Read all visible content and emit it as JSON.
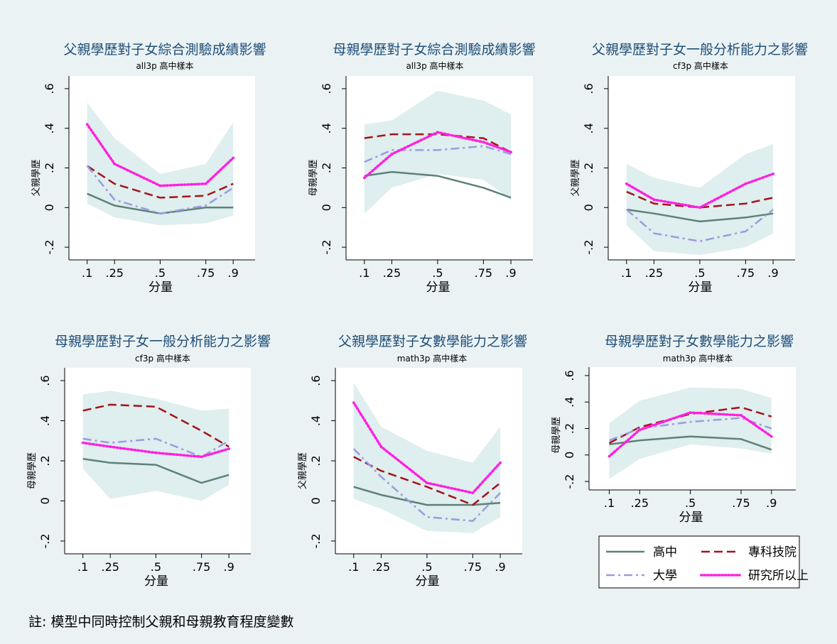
{
  "colors": {
    "background": "#eaf2f3",
    "plot_bg": "#ffffff",
    "band": "#dfeeee",
    "title": "#1f4e79"
  },
  "note": "註: 模型中同時控制父親和母親教育程度變數",
  "legend": {
    "items": [
      {
        "label": "高中",
        "color": "#5d8278",
        "dash": "solid"
      },
      {
        "label": "專科技院",
        "color": "#a3141c",
        "dash": "dash"
      },
      {
        "label": "大學",
        "color": "#9b9be0",
        "dash": "dashdot"
      },
      {
        "label": "研究所以上",
        "color": "#ff21e0",
        "dash": "dotted"
      }
    ]
  },
  "chart_data": [
    {
      "type": "line",
      "title": "父親學歷對子女綜合測驗成績影響",
      "subtitle": "all3p 高中樣本",
      "xlabel": "分量",
      "ylabel": "父親學歷",
      "x": [
        0.1,
        0.25,
        0.5,
        0.75,
        0.9
      ],
      "x_tick_labels": [
        ".1",
        ".25",
        ".5",
        ".75",
        ".9"
      ],
      "ylim": [
        -0.2,
        0.6
      ],
      "y_ticks": [
        -0.2,
        0,
        0.2,
        0.4,
        0.6
      ],
      "y_tick_labels": [
        "-.2",
        "0",
        ".2",
        ".4",
        ".6"
      ],
      "band": {
        "upper": [
          0.53,
          0.35,
          0.17,
          0.22,
          0.43
        ],
        "lower": [
          0.02,
          -0.05,
          -0.09,
          -0.08,
          -0.04
        ]
      },
      "series": [
        {
          "name": "高中",
          "values": [
            0.07,
            0.01,
            -0.03,
            0.0,
            0.0
          ]
        },
        {
          "name": "專科技院",
          "values": [
            0.21,
            0.12,
            0.05,
            0.06,
            0.12
          ]
        },
        {
          "name": "大學",
          "values": [
            0.21,
            0.04,
            -0.03,
            0.01,
            0.1
          ]
        },
        {
          "name": "研究所以上",
          "values": [
            0.42,
            0.22,
            0.11,
            0.12,
            0.25
          ]
        }
      ]
    },
    {
      "type": "line",
      "title": "母親學歷對子女綜合測驗成績影響",
      "subtitle": "all3p 高中樣本",
      "xlabel": "分量",
      "ylabel": "母親學歷",
      "x": [
        0.1,
        0.25,
        0.5,
        0.75,
        0.9
      ],
      "x_tick_labels": [
        ".1",
        ".25",
        ".5",
        ".75",
        ".9"
      ],
      "ylim": [
        -0.2,
        0.6
      ],
      "y_ticks": [
        -0.2,
        0,
        0.2,
        0.4,
        0.6
      ],
      "y_tick_labels": [
        "-.2",
        "0",
        ".2",
        ".4",
        ".6"
      ],
      "band": {
        "upper": [
          0.42,
          0.44,
          0.59,
          0.54,
          0.47
        ],
        "lower": [
          -0.03,
          0.1,
          0.17,
          0.14,
          0.04
        ]
      },
      "series": [
        {
          "name": "高中",
          "values": [
            0.16,
            0.18,
            0.16,
            0.1,
            0.05
          ]
        },
        {
          "name": "專科技院",
          "values": [
            0.35,
            0.37,
            0.37,
            0.35,
            0.28
          ]
        },
        {
          "name": "大學",
          "values": [
            0.23,
            0.29,
            0.29,
            0.31,
            0.27
          ]
        },
        {
          "name": "研究所以上",
          "values": [
            0.15,
            0.27,
            0.38,
            0.33,
            0.28
          ]
        }
      ]
    },
    {
      "type": "line",
      "title": "父親學歷對子女一般分析能力之影響",
      "subtitle": "cf3p 高中樣本",
      "xlabel": "分量",
      "ylabel": "父親學歷",
      "x": [
        0.1,
        0.25,
        0.5,
        0.75,
        0.9
      ],
      "x_tick_labels": [
        ".1",
        ".25",
        ".5",
        ".75",
        ".9"
      ],
      "ylim": [
        -0.2,
        0.6
      ],
      "y_ticks": [
        -0.2,
        0,
        0.2,
        0.4,
        0.6
      ],
      "y_tick_labels": [
        "-.2",
        "0",
        ".2",
        ".4",
        ".6"
      ],
      "band": {
        "upper": [
          0.22,
          0.15,
          0.1,
          0.27,
          0.32
        ],
        "lower": [
          -0.09,
          -0.22,
          -0.24,
          -0.2,
          -0.13
        ]
      },
      "series": [
        {
          "name": "高中",
          "values": [
            -0.01,
            -0.03,
            -0.07,
            -0.05,
            -0.03
          ]
        },
        {
          "name": "專科技院",
          "values": [
            0.08,
            0.02,
            0.0,
            0.02,
            0.05
          ]
        },
        {
          "name": "大學",
          "values": [
            -0.01,
            -0.13,
            -0.17,
            -0.12,
            -0.01
          ]
        },
        {
          "name": "研究所以上",
          "values": [
            0.12,
            0.04,
            0.0,
            0.12,
            0.17
          ]
        }
      ]
    },
    {
      "type": "line",
      "title": "母親學歷對子女一般分析能力之影響",
      "subtitle": "cf3p 高中樣本",
      "xlabel": "分量",
      "ylabel": "母親學歷",
      "x": [
        0.1,
        0.25,
        0.5,
        0.75,
        0.9
      ],
      "x_tick_labels": [
        ".1",
        ".25",
        ".5",
        ".75",
        ".9"
      ],
      "ylim": [
        -0.2,
        0.6
      ],
      "y_ticks": [
        -0.2,
        0,
        0.2,
        0.4,
        0.6
      ],
      "y_tick_labels": [
        "-.2",
        "0",
        ".2",
        ".4",
        ".6"
      ],
      "band": {
        "upper": [
          0.53,
          0.55,
          0.51,
          0.45,
          0.46
        ],
        "lower": [
          0.16,
          0.01,
          0.05,
          0.0,
          0.08
        ]
      },
      "series": [
        {
          "name": "高中",
          "values": [
            0.21,
            0.19,
            0.18,
            0.09,
            0.13
          ]
        },
        {
          "name": "專科技院",
          "values": [
            0.45,
            0.48,
            0.47,
            0.35,
            0.27
          ]
        },
        {
          "name": "大學",
          "values": [
            0.31,
            0.29,
            0.31,
            0.22,
            0.3
          ]
        },
        {
          "name": "研究所以上",
          "values": [
            0.29,
            0.27,
            0.24,
            0.22,
            0.26
          ]
        }
      ]
    },
    {
      "type": "line",
      "title": "父親學歷對子女數學能力之影響",
      "subtitle": "math3p 高中樣本",
      "xlabel": "分量",
      "ylabel": "父親學歷",
      "x": [
        0.1,
        0.25,
        0.5,
        0.75,
        0.9
      ],
      "x_tick_labels": [
        ".1",
        ".25",
        ".5",
        ".75",
        ".9"
      ],
      "ylim": [
        -0.2,
        0.6
      ],
      "y_ticks": [
        -0.2,
        0,
        0.2,
        0.4,
        0.6
      ],
      "y_tick_labels": [
        "-.2",
        "0",
        ".2",
        ".4",
        ".6"
      ],
      "band": {
        "upper": [
          0.59,
          0.37,
          0.25,
          0.19,
          0.37
        ],
        "lower": [
          0.01,
          -0.04,
          -0.15,
          -0.16,
          -0.08
        ]
      },
      "series": [
        {
          "name": "高中",
          "values": [
            0.07,
            0.03,
            -0.02,
            -0.02,
            -0.01
          ]
        },
        {
          "name": "專科技院",
          "values": [
            0.22,
            0.15,
            0.07,
            -0.02,
            0.09
          ]
        },
        {
          "name": "大學",
          "values": [
            0.26,
            0.12,
            -0.08,
            -0.1,
            0.04
          ]
        },
        {
          "name": "研究所以上",
          "values": [
            0.49,
            0.27,
            0.09,
            0.04,
            0.19
          ]
        }
      ]
    },
    {
      "type": "line",
      "title": "母親學歷對子女數學能力之影響",
      "subtitle": "math3p 高中樣本",
      "xlabel": "分量",
      "ylabel": "母親學歷",
      "x": [
        0.1,
        0.25,
        0.5,
        0.75,
        0.9
      ],
      "x_tick_labels": [
        ".1",
        ".25",
        ".5",
        ".75",
        ".9"
      ],
      "ylim": [
        -0.2,
        0.6
      ],
      "y_ticks": [
        -0.2,
        0,
        0.2,
        0.4,
        0.6
      ],
      "y_tick_labels": [
        "-.2",
        "0",
        ".2",
        ".4",
        ".6"
      ],
      "band": {
        "upper": [
          0.24,
          0.41,
          0.51,
          0.5,
          0.43
        ],
        "lower": [
          -0.18,
          -0.03,
          0.08,
          0.05,
          0.01
        ]
      },
      "series": [
        {
          "name": "高中",
          "values": [
            0.08,
            0.11,
            0.14,
            0.12,
            0.04
          ]
        },
        {
          "name": "專科技院",
          "values": [
            0.09,
            0.21,
            0.31,
            0.36,
            0.29
          ]
        },
        {
          "name": "大學",
          "values": [
            0.11,
            0.2,
            0.25,
            0.28,
            0.2
          ]
        },
        {
          "name": "研究所以上",
          "values": [
            -0.01,
            0.19,
            0.32,
            0.3,
            0.14
          ]
        }
      ]
    }
  ]
}
